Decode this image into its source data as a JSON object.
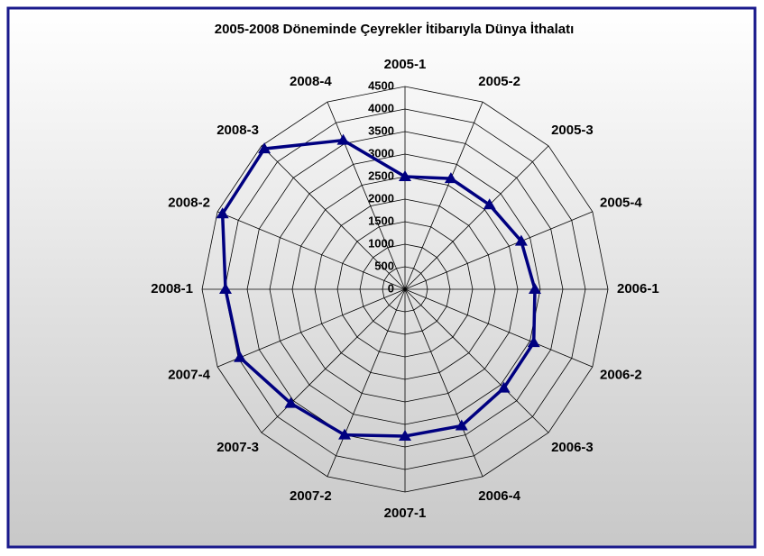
{
  "chart_data": {
    "type": "radar",
    "title": "2005-2008 Döneminde Çeyrekler İtibarıyla Dünya İthalatı",
    "categories": [
      "2005-1",
      "2005-2",
      "2005-3",
      "2005-4",
      "2006-1",
      "2006-2",
      "2006-3",
      "2006-4",
      "2007-1",
      "2007-2",
      "2007-3",
      "2007-4",
      "2008-1",
      "2008-2",
      "2008-3",
      "2008-4"
    ],
    "values": [
      2500,
      2660,
      2650,
      2790,
      2880,
      3090,
      3100,
      3280,
      3260,
      3500,
      3580,
      3960,
      3980,
      4380,
      4410,
      3580
    ],
    "color": "#000080",
    "ylim": [
      0,
      4500
    ],
    "yticks": [
      0,
      500,
      1000,
      1500,
      2000,
      2500,
      3000,
      3500,
      4000,
      4500
    ],
    "grid": true
  }
}
